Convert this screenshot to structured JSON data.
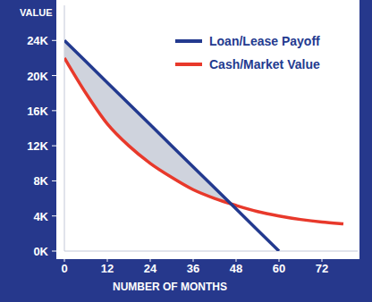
{
  "chart_data": {
    "type": "line",
    "y_label": "VALUE",
    "x_label": "NUMBER OF MONTHS",
    "x": [
      0,
      6,
      12,
      18,
      24,
      30,
      36,
      42,
      48,
      54,
      60,
      66,
      72,
      78
    ],
    "series": [
      {
        "name": "Loan/Lease Payoff",
        "color": "#233a8f",
        "line_style": "straight",
        "values": [
          24000,
          21600,
          19200,
          16800,
          14400,
          12000,
          9600,
          7200,
          4800,
          2400,
          0,
          null,
          null,
          null
        ]
      },
      {
        "name": "Cash/Market Value",
        "color": "#e8392b",
        "line_style": "smooth",
        "values": [
          22000,
          18000,
          14500,
          12000,
          10000,
          8400,
          7000,
          6000,
          5200,
          4500,
          4000,
          3600,
          3300,
          3100
        ]
      }
    ],
    "xlim": [
      0,
      82
    ],
    "xticks": [
      0,
      12,
      24,
      36,
      48,
      60,
      72
    ],
    "ylim": [
      0,
      28000
    ],
    "yticks": [
      {
        "value": 0,
        "label": "0K"
      },
      {
        "value": 4000,
        "label": "4K"
      },
      {
        "value": 8000,
        "label": "8K"
      },
      {
        "value": 12000,
        "label": "12K"
      },
      {
        "value": 16000,
        "label": "16K"
      },
      {
        "value": 20000,
        "label": "20K"
      },
      {
        "value": 24000,
        "label": "24K"
      }
    ],
    "legend": "top-right",
    "grid": false
  }
}
